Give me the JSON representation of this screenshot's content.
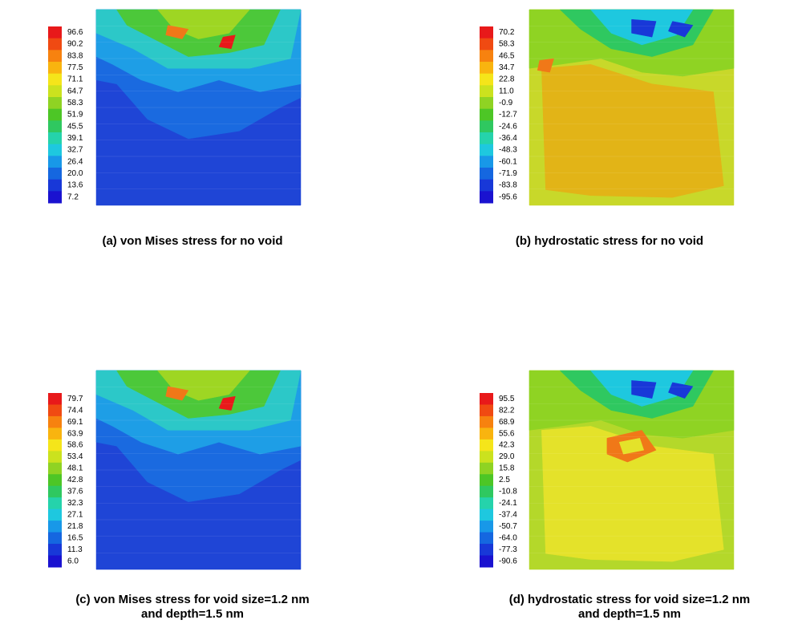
{
  "panels": [
    {
      "colorbar": {
        "labels": [
          "96.6",
          "90.2",
          "83.8",
          "77.5",
          "71.1",
          "64.7",
          "58.3",
          "51.9",
          "45.5",
          "39.1",
          "32.7",
          "26.4",
          "20.0",
          "13.6",
          "7.2"
        ]
      },
      "caption": [
        "(a) von Mises stress for no void"
      ]
    },
    {
      "colorbar": {
        "labels": [
          "70.2",
          "58.3",
          "46.5",
          "34.7",
          "22.8",
          "11.0",
          "-0.9",
          "-12.7",
          "-24.6",
          "-36.4",
          "-48.3",
          "-60.1",
          "-71.9",
          "-83.8",
          "-95.6"
        ]
      },
      "caption": [
        "(b) hydrostatic stress for no void"
      ]
    },
    {
      "colorbar": {
        "labels": [
          "79.7",
          "74.4",
          "69.1",
          "63.9",
          "58.6",
          "53.4",
          "48.1",
          "42.8",
          "37.6",
          "32.3",
          "27.1",
          "21.8",
          "16.5",
          "11.3",
          "6.0"
        ]
      },
      "caption": [
        "(c) von Mises stress for void size=1.2 nm",
        "and depth=1.5 nm"
      ]
    },
    {
      "colorbar": {
        "labels": [
          "95.5",
          "82.2",
          "68.9",
          "55.6",
          "42.3",
          "29.0",
          "15.8",
          "2.5",
          "-10.8",
          "-24.1",
          "-37.4",
          "-50.7",
          "-64.0",
          "-77.3",
          "-90.6"
        ]
      },
      "caption": [
        "(d) hydrostatic stress for void size=1.2 nm",
        "and depth=1.5 nm"
      ]
    }
  ]
}
